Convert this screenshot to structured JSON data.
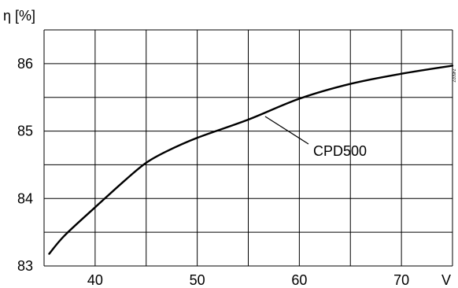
{
  "chart_data": {
    "type": "line",
    "title": "",
    "xlabel": "V",
    "ylabel": "η [%]",
    "xlim": [
      35,
      75
    ],
    "ylim": [
      83,
      86.5
    ],
    "x_ticks": [
      40,
      50,
      60,
      70
    ],
    "y_ticks": [
      83,
      84,
      85,
      86
    ],
    "x_grid": [
      35,
      40,
      45,
      50,
      55,
      60,
      65,
      70,
      75
    ],
    "y_grid": [
      83,
      83.5,
      84,
      84.5,
      85,
      85.5,
      86,
      86.5
    ],
    "grid": true,
    "line_color": "#000000",
    "series": [
      {
        "name": "CPD500",
        "x": [
          35.5,
          37,
          40,
          43,
          45,
          47,
          50,
          55,
          60,
          65,
          70,
          75
        ],
        "y": [
          83.18,
          83.45,
          83.87,
          84.28,
          84.53,
          84.7,
          84.9,
          85.17,
          85.48,
          85.7,
          85.85,
          85.97
        ]
      }
    ],
    "annotations": [
      {
        "text": "CPD500",
        "series": "CPD500",
        "at_x": 56.5
      }
    ],
    "side_code": "Z4502Z"
  }
}
